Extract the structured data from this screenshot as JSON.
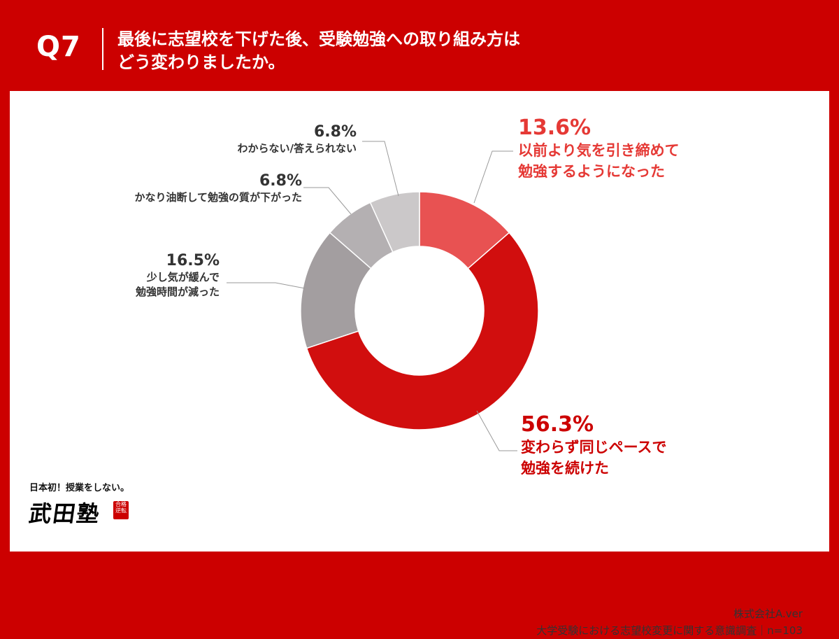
{
  "header": {
    "question_number": "Q7",
    "title_line1": "最後に志望校を下げた後、受験勉強への取り組み方は",
    "title_line2": "どう変わりましたか。"
  },
  "chart_data": {
    "type": "pie",
    "donut": true,
    "unit": "%",
    "slices": [
      {
        "label": "以前より気を引き締めて勉強するようになった",
        "label_lines": [
          "以前より気を引き締めて",
          "勉強するようになった"
        ],
        "value": 13.6,
        "value_label": "13.6%",
        "color": "#e85252"
      },
      {
        "label": "変わらず同じペースで勉強を続けた",
        "label_lines": [
          "変わらず同じペースで",
          "勉強を続けた"
        ],
        "value": 56.3,
        "value_label": "56.3%",
        "color": "#d10e0e"
      },
      {
        "label": "少し気が緩んで勉強時間が減った",
        "label_lines": [
          "少し気が緩んで",
          "勉強時間が減った"
        ],
        "value": 16.5,
        "value_label": "16.5%",
        "color": "#a39ea0"
      },
      {
        "label": "かなり油断して勉強の質が下がった",
        "label_lines": [
          "かなり油断して勉強の質が下がった"
        ],
        "value": 6.8,
        "value_label": "6.8%",
        "color": "#b4b0b2"
      },
      {
        "label": "わからない/答えられない",
        "label_lines": [
          "わからない/答えられない"
        ],
        "value": 6.8,
        "value_label": "6.8%",
        "color": "#cbc8c9"
      }
    ]
  },
  "logo": {
    "tagline": "日本初！授業をしない。",
    "name": "武田塾",
    "seal": "合格逆転"
  },
  "footer": {
    "company": "株式会社A.ver",
    "survey": "大学受験における志望校変更に関する意識調査｜n=103"
  }
}
